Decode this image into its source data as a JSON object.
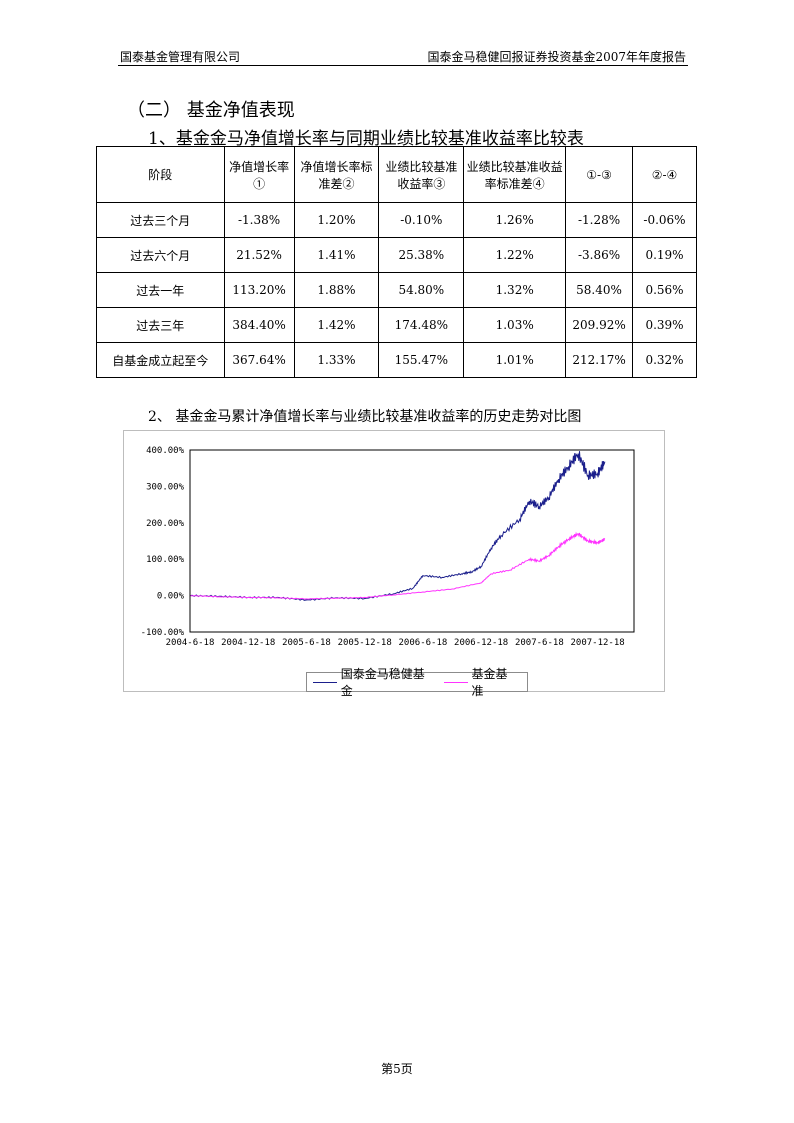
{
  "header": {
    "company": "国泰基金管理有限公司",
    "report": "国泰金马稳健回报证券投资基金2007年年度报告"
  },
  "section_title": "（二） 基金净值表现",
  "table_title": "1、基金金马净值增长率与同期业绩比较基准收益率比较表",
  "table": {
    "headers": [
      "阶段",
      "净值增长率①",
      "净值增长率标准差②",
      "业绩比较基准收益率③",
      "业绩比较基准收益率标准差④",
      "①-③",
      "②-④"
    ],
    "rows": [
      [
        "过去三个月",
        "-1.38%",
        "1.20%",
        "-0.10%",
        "1.26%",
        "-1.28%",
        "-0.06%"
      ],
      [
        "过去六个月",
        "21.52%",
        "1.41%",
        "25.38%",
        "1.22%",
        "-3.86%",
        "0.19%"
      ],
      [
        "过去一年",
        "113.20%",
        "1.88%",
        "54.80%",
        "1.32%",
        "58.40%",
        "0.56%"
      ],
      [
        "过去三年",
        "384.40%",
        "1.42%",
        "174.48%",
        "1.03%",
        "209.92%",
        "0.39%"
      ],
      [
        "自基金成立起至今",
        "367.64%",
        "1.33%",
        "155.47%",
        "1.01%",
        "212.17%",
        "0.32%"
      ]
    ]
  },
  "chart_title": "2、  基金金马累计净值增长率与业绩比较基准收益率的历史走势对比图",
  "chart_data": {
    "type": "line",
    "x_tick_labels": [
      "2004-6-18",
      "2004-12-18",
      "2005-6-18",
      "2005-12-18",
      "2006-6-18",
      "2006-12-18",
      "2007-6-18",
      "2007-12-18"
    ],
    "y_tick_labels": [
      "400.00%",
      "300.00%",
      "200.00%",
      "100.00%",
      "0.00%",
      "-100.00%"
    ],
    "ylim": [
      -100,
      400
    ],
    "grid": false,
    "legend_position": "bottom",
    "series": [
      {
        "name": "国泰金马稳健基金",
        "color": "#1b1f8c",
        "x": [
          "2004-06-18",
          "2004-09-18",
          "2004-12-18",
          "2005-03-18",
          "2005-06-18",
          "2005-09-18",
          "2005-12-18",
          "2006-03-18",
          "2006-05-18",
          "2006-06-18",
          "2006-08-18",
          "2006-10-18",
          "2006-11-18",
          "2006-12-18",
          "2007-01-18",
          "2007-02-18",
          "2007-04-18",
          "2007-05-18",
          "2007-06-18",
          "2007-07-18",
          "2007-08-18",
          "2007-09-18",
          "2007-10-18",
          "2007-11-18",
          "2007-12-18",
          "2008-01-10"
        ],
        "values": [
          0,
          -2,
          -5,
          -5,
          -12,
          -6,
          -8,
          5,
          20,
          55,
          50,
          60,
          65,
          80,
          130,
          165,
          210,
          260,
          245,
          270,
          320,
          355,
          390,
          330,
          335,
          368
        ]
      },
      {
        "name": "基金基准",
        "color": "#ff33ff",
        "x": [
          "2004-06-18",
          "2004-09-18",
          "2004-12-18",
          "2005-03-18",
          "2005-06-18",
          "2005-09-18",
          "2005-12-18",
          "2006-03-18",
          "2006-06-18",
          "2006-09-18",
          "2006-12-18",
          "2007-01-18",
          "2007-03-18",
          "2007-05-18",
          "2007-06-18",
          "2007-07-18",
          "2007-08-18",
          "2007-09-18",
          "2007-10-18",
          "2007-11-18",
          "2007-12-18",
          "2008-01-10"
        ],
        "values": [
          0,
          -3,
          -5,
          -6,
          -9,
          -7,
          -5,
          2,
          10,
          18,
          35,
          60,
          70,
          100,
          95,
          110,
          135,
          155,
          170,
          150,
          145,
          155
        ]
      }
    ]
  },
  "footer": {
    "page": "第5页"
  }
}
